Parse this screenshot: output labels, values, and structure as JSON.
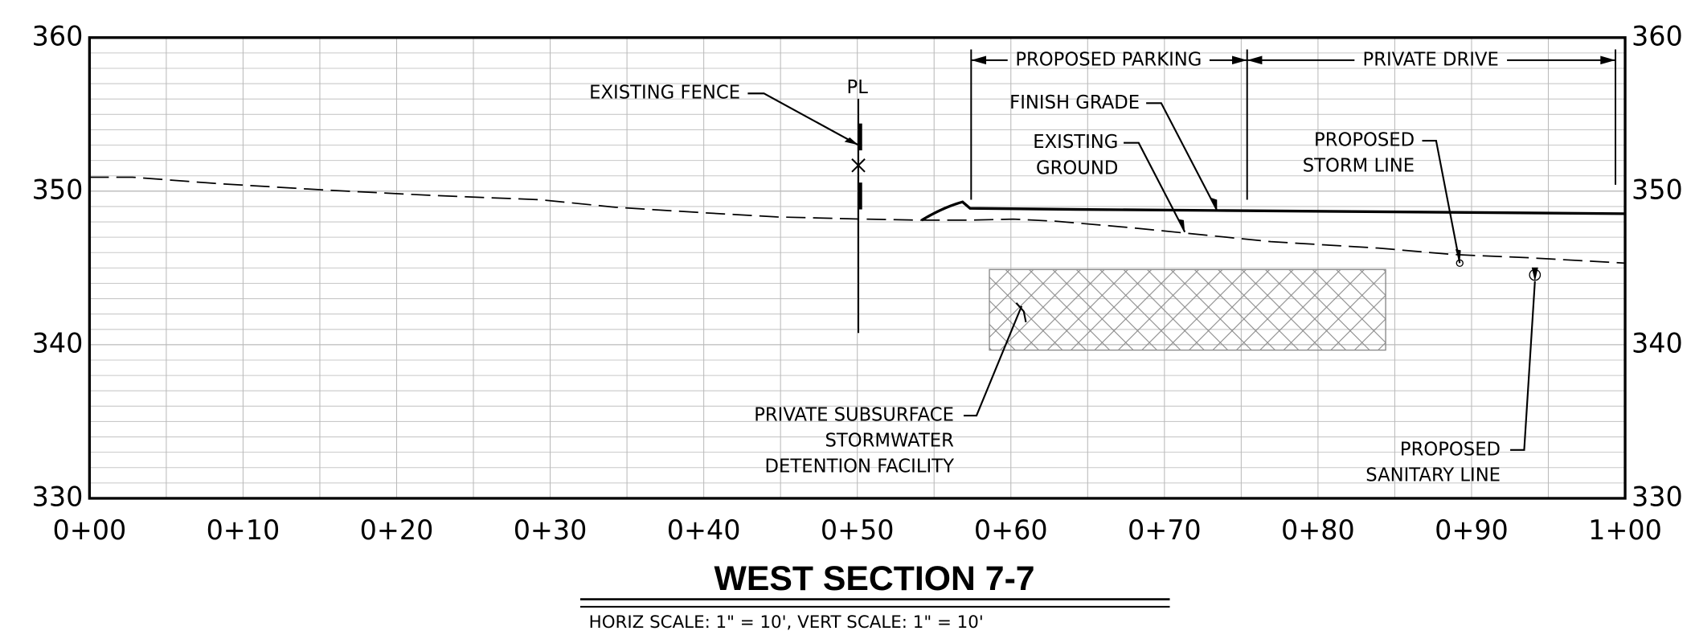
{
  "axes": {
    "left": [
      "360",
      "350",
      "340",
      "330"
    ],
    "right": [
      "360",
      "350",
      "340",
      "330"
    ],
    "bottom": [
      "0+00",
      "0+10",
      "0+20",
      "0+30",
      "0+40",
      "0+50",
      "0+60",
      "0+70",
      "0+80",
      "0+90",
      "1+00"
    ]
  },
  "labels": {
    "pl": "PL",
    "existing_fence": "EXISTING FENCE",
    "proposed_parking": "PROPOSED PARKING",
    "private_drive": "PRIVATE DRIVE",
    "finish_grade": "FINISH GRADE",
    "existing_ground": [
      "EXISTING",
      "GROUND"
    ],
    "storm_line": [
      "PROPOSED",
      "STORM LINE"
    ],
    "detention": [
      "PRIVATE SUBSURFACE",
      "STORMWATER",
      "DETENTION FACILITY"
    ],
    "sanitary_line": [
      "PROPOSED",
      "SANITARY LINE"
    ]
  },
  "title": "WEST SECTION 7-7",
  "subtitle": "HORIZ SCALE: 1\" = 10', VERT SCALE: 1\" = 10'"
}
